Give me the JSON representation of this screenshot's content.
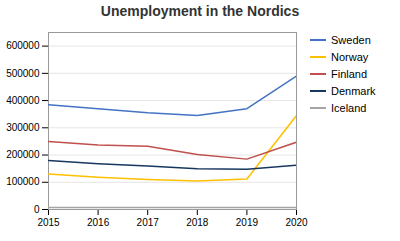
{
  "chart_data": {
    "type": "line",
    "title": "Unemployment in the Nordics",
    "x": [
      2015,
      2016,
      2017,
      2018,
      2019,
      2020
    ],
    "series": [
      {
        "name": "Sweden",
        "color": "#4472C4",
        "values": [
          385000,
          370000,
          355000,
          345000,
          370000,
          490000
        ]
      },
      {
        "name": "Norway",
        "color": "#FFC000",
        "values": [
          130000,
          118000,
          110000,
          105000,
          112000,
          345000
        ]
      },
      {
        "name": "Finland",
        "color": "#C0504D",
        "values": [
          250000,
          237000,
          232000,
          202000,
          185000,
          247000
        ]
      },
      {
        "name": "Denmark",
        "color": "#17375E",
        "values": [
          180000,
          168000,
          160000,
          150000,
          148000,
          163000
        ]
      },
      {
        "name": "Iceland",
        "color": "#A5A5A5",
        "values": [
          7000,
          7000,
          7000,
          7000,
          7000,
          7000
        ]
      }
    ],
    "xlim": [
      2015,
      2020
    ],
    "xticks": [
      2015,
      2016,
      2017,
      2018,
      2019,
      2020
    ],
    "ylim": [
      0,
      650000
    ],
    "yticks": [
      0,
      100000,
      200000,
      300000,
      400000,
      500000,
      600000
    ],
    "grid": true,
    "legend": "right"
  }
}
